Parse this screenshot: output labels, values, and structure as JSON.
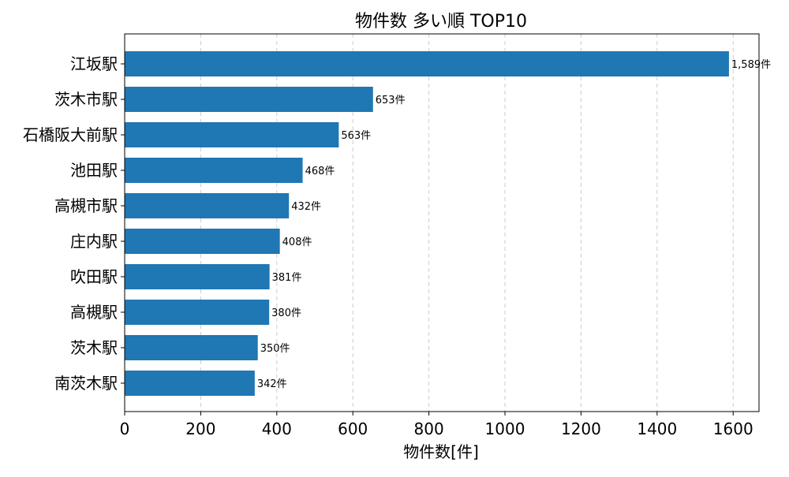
{
  "chart_data": {
    "type": "bar",
    "orientation": "horizontal",
    "title": "物件数 多い順 TOP10",
    "xlabel": "物件数[件]",
    "ylabel": "",
    "categories": [
      "江坂駅",
      "茨木市駅",
      "石橋阪大前駅",
      "池田駅",
      "高槻市駅",
      "庄内駅",
      "吹田駅",
      "高槻駅",
      "茨木駅",
      "南茨木駅"
    ],
    "values": [
      1589,
      653,
      563,
      468,
      432,
      408,
      381,
      380,
      350,
      342
    ],
    "data_labels": [
      "1,589件",
      "653件",
      "563件",
      "468件",
      "432件",
      "408件",
      "381件",
      "380件",
      "350件",
      "342件"
    ],
    "xlim": [
      0,
      1668
    ],
    "xticks": [
      0,
      200,
      400,
      600,
      800,
      1000,
      1200,
      1400,
      1600
    ],
    "xtick_labels": [
      "0",
      "200",
      "400",
      "600",
      "800",
      "1000",
      "1200",
      "1400",
      "1600"
    ],
    "grid": "vertical dashed",
    "bar_color": "#1f77b4"
  }
}
